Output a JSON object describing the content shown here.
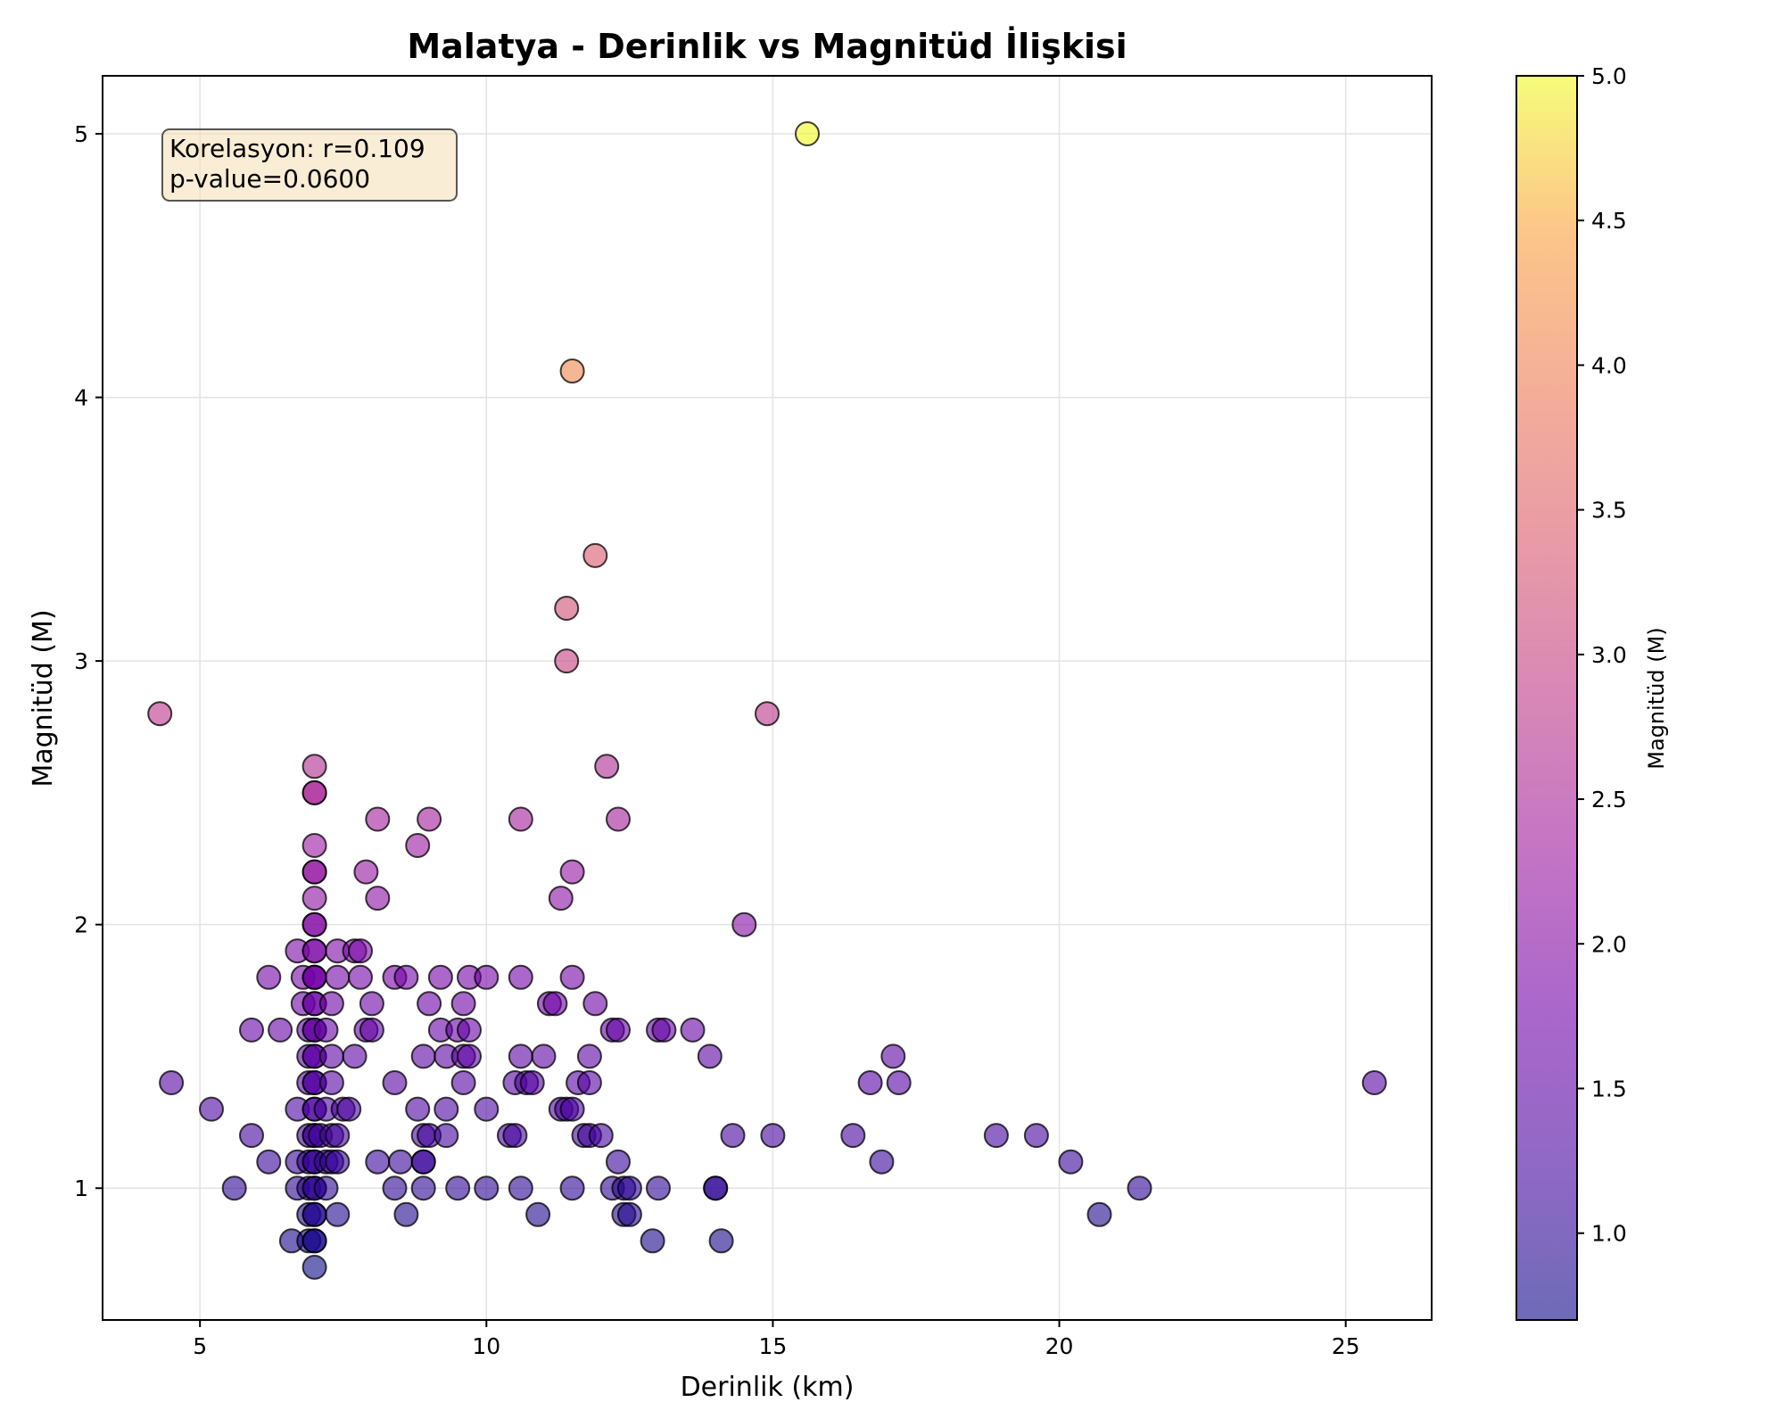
{
  "chart_data": {
    "type": "scatter",
    "title": "Malatya - Derinlik vs Magnitüd İlişkisi",
    "xlabel": "Derinlik (km)",
    "ylabel": "Magnitüd (M)",
    "xlim": [
      3.3,
      26.5
    ],
    "ylim": [
      0.5,
      5.22
    ],
    "xticks": [
      5,
      10,
      15,
      20,
      25
    ],
    "yticks": [
      1,
      2,
      3,
      4,
      5
    ],
    "grid": true,
    "colormap": "plasma",
    "color_range": [
      0.7,
      5.0
    ],
    "colorbar": {
      "label": "Magnitüd (M)",
      "ticks": [
        "1.0",
        "1.5",
        "2.0",
        "2.5",
        "3.0",
        "3.5",
        "4.0",
        "4.5",
        "5.0"
      ],
      "values": [
        1.0,
        1.5,
        2.0,
        2.5,
        3.0,
        3.5,
        4.0,
        4.5,
        5.0
      ]
    },
    "annotation": {
      "lines": [
        "Korelasyon: r=0.109",
        "p-value=0.0600"
      ],
      "placement": "top-left",
      "background": "#f5deb3"
    },
    "points": [
      [
        15.6,
        5.0
      ],
      [
        11.5,
        4.1
      ],
      [
        11.9,
        3.4
      ],
      [
        11.4,
        3.2
      ],
      [
        11.4,
        3.0
      ],
      [
        4.3,
        2.8
      ],
      [
        14.9,
        2.8
      ],
      [
        7.0,
        2.6
      ],
      [
        12.1,
        2.6
      ],
      [
        7.0,
        2.5
      ],
      [
        7.0,
        2.5
      ],
      [
        8.1,
        2.4
      ],
      [
        9.0,
        2.4
      ],
      [
        10.6,
        2.4
      ],
      [
        12.3,
        2.4
      ],
      [
        7.0,
        2.3
      ],
      [
        8.8,
        2.3
      ],
      [
        7.0,
        2.2
      ],
      [
        7.0,
        2.2
      ],
      [
        7.9,
        2.2
      ],
      [
        11.5,
        2.2
      ],
      [
        7.0,
        2.1
      ],
      [
        8.1,
        2.1
      ],
      [
        11.3,
        2.1
      ],
      [
        7.0,
        2.0
      ],
      [
        7.0,
        2.0
      ],
      [
        14.5,
        2.0
      ],
      [
        6.7,
        1.9
      ],
      [
        7.0,
        1.9
      ],
      [
        7.0,
        1.9
      ],
      [
        7.4,
        1.9
      ],
      [
        7.7,
        1.9
      ],
      [
        7.8,
        1.9
      ],
      [
        6.2,
        1.8
      ],
      [
        6.8,
        1.8
      ],
      [
        7.0,
        1.8
      ],
      [
        7.0,
        1.8
      ],
      [
        7.0,
        1.8
      ],
      [
        7.4,
        1.8
      ],
      [
        7.8,
        1.8
      ],
      [
        8.4,
        1.8
      ],
      [
        8.6,
        1.8
      ],
      [
        9.2,
        1.8
      ],
      [
        9.7,
        1.8
      ],
      [
        10.0,
        1.8
      ],
      [
        10.6,
        1.8
      ],
      [
        11.5,
        1.8
      ],
      [
        6.8,
        1.7
      ],
      [
        7.0,
        1.7
      ],
      [
        7.0,
        1.7
      ],
      [
        7.3,
        1.7
      ],
      [
        8.0,
        1.7
      ],
      [
        9.0,
        1.7
      ],
      [
        9.6,
        1.7
      ],
      [
        11.1,
        1.7
      ],
      [
        11.2,
        1.7
      ],
      [
        11.9,
        1.7
      ],
      [
        5.9,
        1.6
      ],
      [
        6.4,
        1.6
      ],
      [
        6.9,
        1.6
      ],
      [
        7.0,
        1.6
      ],
      [
        7.0,
        1.6
      ],
      [
        7.2,
        1.6
      ],
      [
        7.9,
        1.6
      ],
      [
        8.0,
        1.6
      ],
      [
        9.2,
        1.6
      ],
      [
        9.5,
        1.6
      ],
      [
        9.7,
        1.6
      ],
      [
        12.2,
        1.6
      ],
      [
        12.3,
        1.6
      ],
      [
        13.0,
        1.6
      ],
      [
        13.1,
        1.6
      ],
      [
        13.6,
        1.6
      ],
      [
        6.9,
        1.5
      ],
      [
        7.0,
        1.5
      ],
      [
        7.0,
        1.5
      ],
      [
        7.3,
        1.5
      ],
      [
        7.7,
        1.5
      ],
      [
        8.9,
        1.5
      ],
      [
        9.3,
        1.5
      ],
      [
        9.6,
        1.5
      ],
      [
        9.7,
        1.5
      ],
      [
        10.6,
        1.5
      ],
      [
        11.0,
        1.5
      ],
      [
        11.8,
        1.5
      ],
      [
        13.9,
        1.5
      ],
      [
        17.1,
        1.5
      ],
      [
        4.5,
        1.4
      ],
      [
        6.9,
        1.4
      ],
      [
        7.0,
        1.4
      ],
      [
        7.0,
        1.4
      ],
      [
        7.3,
        1.4
      ],
      [
        8.4,
        1.4
      ],
      [
        9.6,
        1.4
      ],
      [
        10.5,
        1.4
      ],
      [
        10.7,
        1.4
      ],
      [
        10.8,
        1.4
      ],
      [
        11.6,
        1.4
      ],
      [
        11.8,
        1.4
      ],
      [
        16.7,
        1.4
      ],
      [
        17.2,
        1.4
      ],
      [
        25.5,
        1.4
      ],
      [
        5.2,
        1.3
      ],
      [
        6.7,
        1.3
      ],
      [
        7.0,
        1.3
      ],
      [
        7.0,
        1.3
      ],
      [
        7.2,
        1.3
      ],
      [
        7.5,
        1.3
      ],
      [
        7.6,
        1.3
      ],
      [
        8.8,
        1.3
      ],
      [
        9.3,
        1.3
      ],
      [
        10.0,
        1.3
      ],
      [
        11.3,
        1.3
      ],
      [
        11.4,
        1.3
      ],
      [
        11.5,
        1.3
      ],
      [
        5.9,
        1.2
      ],
      [
        6.9,
        1.2
      ],
      [
        7.0,
        1.2
      ],
      [
        7.0,
        1.2
      ],
      [
        7.1,
        1.2
      ],
      [
        7.3,
        1.2
      ],
      [
        7.4,
        1.2
      ],
      [
        8.9,
        1.2
      ],
      [
        9.0,
        1.2
      ],
      [
        9.3,
        1.2
      ],
      [
        10.4,
        1.2
      ],
      [
        10.5,
        1.2
      ],
      [
        11.7,
        1.2
      ],
      [
        11.8,
        1.2
      ],
      [
        12.0,
        1.2
      ],
      [
        14.3,
        1.2
      ],
      [
        15.0,
        1.2
      ],
      [
        16.4,
        1.2
      ],
      [
        18.9,
        1.2
      ],
      [
        19.6,
        1.2
      ],
      [
        6.2,
        1.1
      ],
      [
        6.7,
        1.1
      ],
      [
        6.9,
        1.1
      ],
      [
        7.0,
        1.1
      ],
      [
        7.0,
        1.1
      ],
      [
        7.2,
        1.1
      ],
      [
        7.3,
        1.1
      ],
      [
        7.4,
        1.1
      ],
      [
        8.1,
        1.1
      ],
      [
        8.5,
        1.1
      ],
      [
        8.9,
        1.1
      ],
      [
        8.9,
        1.1
      ],
      [
        12.3,
        1.1
      ],
      [
        16.9,
        1.1
      ],
      [
        20.2,
        1.1
      ],
      [
        5.6,
        1.0
      ],
      [
        6.7,
        1.0
      ],
      [
        6.9,
        1.0
      ],
      [
        7.0,
        1.0
      ],
      [
        7.0,
        1.0
      ],
      [
        7.2,
        1.0
      ],
      [
        8.4,
        1.0
      ],
      [
        8.9,
        1.0
      ],
      [
        9.5,
        1.0
      ],
      [
        10.0,
        1.0
      ],
      [
        10.6,
        1.0
      ],
      [
        11.5,
        1.0
      ],
      [
        12.2,
        1.0
      ],
      [
        12.4,
        1.0
      ],
      [
        12.5,
        1.0
      ],
      [
        13.0,
        1.0
      ],
      [
        14.0,
        1.0
      ],
      [
        14.0,
        1.0
      ],
      [
        21.4,
        1.0
      ],
      [
        6.9,
        0.9
      ],
      [
        7.0,
        0.9
      ],
      [
        7.0,
        0.9
      ],
      [
        7.4,
        0.9
      ],
      [
        8.6,
        0.9
      ],
      [
        10.9,
        0.9
      ],
      [
        12.4,
        0.9
      ],
      [
        12.5,
        0.9
      ],
      [
        20.7,
        0.9
      ],
      [
        6.6,
        0.8
      ],
      [
        6.9,
        0.8
      ],
      [
        7.0,
        0.8
      ],
      [
        7.0,
        0.8
      ],
      [
        12.9,
        0.8
      ],
      [
        14.1,
        0.8
      ],
      [
        7.0,
        0.7
      ]
    ]
  }
}
